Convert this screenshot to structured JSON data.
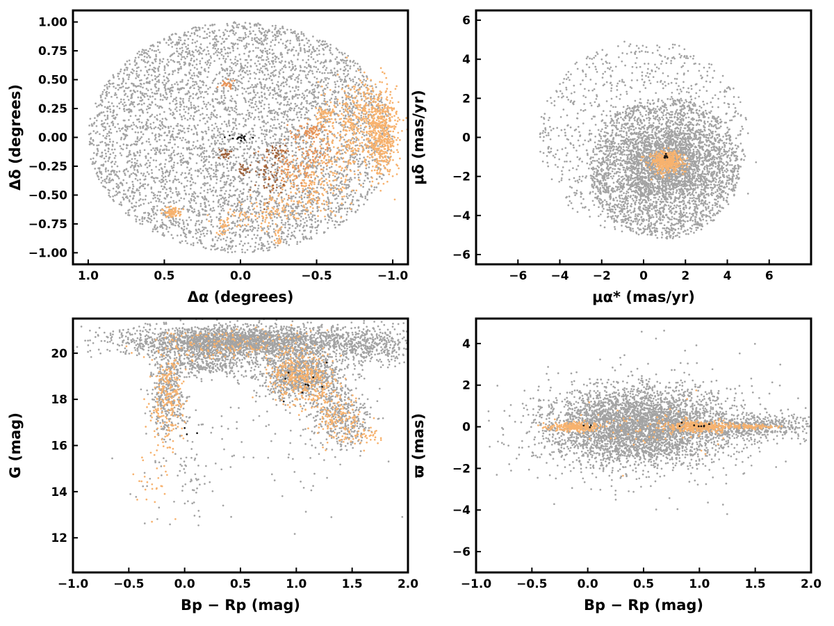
{
  "figure": {
    "colors": {
      "field": "#a3a3a3",
      "members": "#f7b26e",
      "members_secondary": "#e8955a",
      "members_dark": "#a0623a",
      "core": "#111111",
      "frame": "#000000"
    }
  },
  "chart_data": [
    {
      "id": "sky",
      "type": "scatter",
      "xlabel": "Δα (degrees)",
      "ylabel": "Δδ (degrees)",
      "xlim": [
        1.1,
        -1.1
      ],
      "ylim": [
        -1.1,
        1.1
      ],
      "xticks": [
        1.0,
        0.5,
        0.0,
        -0.5,
        -1.0
      ],
      "xtick_labels": [
        "1.0",
        "0.5",
        "0.0",
        "−0.5",
        "−1.0"
      ],
      "yticks": [
        1.0,
        0.75,
        0.5,
        0.25,
        0.0,
        -0.25,
        -0.5,
        -0.75,
        -1.0
      ],
      "ytick_labels": [
        "1.00",
        "0.75",
        "0.50",
        "0.25",
        "0.00",
        "−0.25",
        "−0.50",
        "−0.75",
        "−1.00"
      ],
      "grid": false,
      "layers": [
        {
          "role": "field",
          "shape": "disk",
          "center": [
            0,
            0
          ],
          "radius": 1.0,
          "count": 5000
        },
        {
          "role": "members",
          "clumps": [
            {
              "center": [
                -0.93,
                0.05
              ],
              "sd": [
                0.05,
                0.2
              ],
              "count": 480
            },
            {
              "center": [
                -0.8,
                0.15
              ],
              "sd": [
                0.08,
                0.18
              ],
              "count": 260
            },
            {
              "center": [
                -0.62,
                -0.1
              ],
              "sd": [
                0.1,
                0.22
              ],
              "count": 180
            },
            {
              "center": [
                -0.55,
                0.2
              ],
              "sd": [
                0.03,
                0.03
              ],
              "count": 50
            },
            {
              "center": [
                0.45,
                -0.65
              ],
              "sd": [
                0.03,
                0.02
              ],
              "count": 70
            },
            {
              "center": [
                -0.45,
                -0.5
              ],
              "sd": [
                0.12,
                0.1
              ],
              "count": 120
            },
            {
              "center": [
                -0.05,
                -0.68
              ],
              "sd": [
                0.1,
                0.05
              ],
              "count": 50
            },
            {
              "center": [
                -0.2,
                -0.6
              ],
              "sd": [
                0.06,
                0.06
              ],
              "count": 40
            },
            {
              "center": [
                -0.4,
                -0.3
              ],
              "sd": [
                0.08,
                0.06
              ],
              "count": 40
            },
            {
              "center": [
                0.12,
                -0.8
              ],
              "sd": [
                0.02,
                0.04
              ],
              "count": 25
            },
            {
              "center": [
                -0.25,
                -0.85
              ],
              "sd": [
                0.02,
                0.04
              ],
              "count": 20
            }
          ]
        },
        {
          "role": "members_secondary",
          "clumps": [
            {
              "center": [
                -0.45,
                0.05
              ],
              "sd": [
                0.06,
                0.03
              ],
              "count": 60
            },
            {
              "center": [
                -0.35,
                -0.25
              ],
              "sd": [
                0.1,
                0.12
              ],
              "count": 90
            },
            {
              "center": [
                -0.5,
                -0.15
              ],
              "sd": [
                0.06,
                0.06
              ],
              "count": 40
            },
            {
              "center": [
                0.1,
                0.46
              ],
              "sd": [
                0.03,
                0.02
              ],
              "count": 25
            }
          ]
        },
        {
          "role": "members_dark",
          "clumps": [
            {
              "center": [
                0.1,
                -0.15
              ],
              "sd": [
                0.03,
                0.02
              ],
              "count": 25
            },
            {
              "center": [
                -0.02,
                -0.27
              ],
              "sd": [
                0.02,
                0.03
              ],
              "count": 20
            },
            {
              "center": [
                -0.25,
                -0.12
              ],
              "sd": [
                0.03,
                0.04
              ],
              "count": 25
            },
            {
              "center": [
                -0.18,
                -0.35
              ],
              "sd": [
                0.06,
                0.08
              ],
              "count": 50
            }
          ]
        },
        {
          "role": "core",
          "clumps": [
            {
              "center": [
                0.0,
                0.0
              ],
              "sd": [
                0.06,
                0.012
              ],
              "count": 16
            }
          ]
        }
      ]
    },
    {
      "id": "proper-motion",
      "type": "scatter",
      "xlabel": "μα* (mas/yr)",
      "ylabel": "μδ (mas/yr)",
      "xlim": [
        -8,
        8
      ],
      "ylim": [
        -6.5,
        6.5
      ],
      "xticks": [
        -6,
        -4,
        -2,
        0,
        2,
        4,
        6
      ],
      "xtick_labels": [
        "−6",
        "−4",
        "−2",
        "0",
        "2",
        "4",
        "6"
      ],
      "yticks": [
        6,
        4,
        2,
        0,
        -2,
        -4,
        -6
      ],
      "ytick_labels": [
        "6",
        "4",
        "2",
        "0",
        "−2",
        "−4",
        "−6"
      ],
      "grid": false,
      "layers": [
        {
          "role": "field",
          "shape": "disk",
          "center": [
            0,
            0
          ],
          "radius": 5.0,
          "count": 1100
        },
        {
          "role": "field",
          "shape": "disk",
          "center": [
            1.0,
            -1.6
          ],
          "radius": 3.6,
          "count": 2200
        },
        {
          "role": "field",
          "clumps": [
            {
              "center": [
                1.0,
                -1.3
              ],
              "sd": [
                1.2,
                0.9
              ],
              "count": 1500
            }
          ]
        },
        {
          "role": "members",
          "clumps": [
            {
              "center": [
                1.1,
                -1.25
              ],
              "sd": [
                0.4,
                0.28
              ],
              "count": 380
            }
          ]
        },
        {
          "role": "core",
          "clumps": [
            {
              "center": [
                1.1,
                -1.0
              ],
              "sd": [
                0.1,
                0.1
              ],
              "count": 8
            }
          ]
        }
      ]
    },
    {
      "id": "cmd",
      "type": "scatter",
      "xlabel": "Bp − Rp (mag)",
      "ylabel": "G (mag)",
      "xlim": [
        -1.0,
        2.0
      ],
      "ylim": [
        10.5,
        21.5
      ],
      "xticks": [
        -1.0,
        -0.5,
        0.0,
        0.5,
        1.0,
        1.5,
        2.0
      ],
      "xtick_labels": [
        "−1.0",
        "−0.5",
        "0.0",
        "0.5",
        "1.0",
        "1.5",
        "2.0"
      ],
      "yticks": [
        20,
        18,
        16,
        14,
        12
      ],
      "ytick_labels": [
        "20",
        "18",
        "16",
        "14",
        "12"
      ],
      "grid": false,
      "layers": [
        {
          "role": "field",
          "clumps": [
            {
              "center": [
                0.5,
                20.5
              ],
              "sd": [
                0.55,
                0.35
              ],
              "count": 2600
            },
            {
              "center": [
                1.05,
                19.0
              ],
              "sd": [
                0.2,
                0.55
              ],
              "count": 900
            },
            {
              "center": [
                -0.15,
                18.2
              ],
              "sd": [
                0.08,
                0.9
              ],
              "count": 350
            },
            {
              "center": [
                1.4,
                17.2
              ],
              "sd": [
                0.15,
                0.6
              ],
              "count": 350
            },
            {
              "center": [
                0.2,
                19.6
              ],
              "sd": [
                0.2,
                0.3
              ],
              "count": 300
            },
            {
              "center": [
                1.7,
                20.3
              ],
              "sd": [
                0.2,
                0.4
              ],
              "count": 300
            },
            {
              "center": [
                0.0,
                15.0
              ],
              "sd": [
                0.2,
                1.2
              ],
              "count": 80
            },
            {
              "center": [
                0.7,
                15.5
              ],
              "sd": [
                0.5,
                1.5
              ],
              "count": 60
            }
          ]
        },
        {
          "role": "members",
          "clumps": [
            {
              "center": [
                -0.15,
                18.0
              ],
              "sd": [
                0.07,
                1.0
              ],
              "count": 230
            },
            {
              "center": [
                1.05,
                18.9
              ],
              "sd": [
                0.15,
                0.55
              ],
              "count": 360
            },
            {
              "center": [
                1.35,
                17.2
              ],
              "sd": [
                0.12,
                0.5
              ],
              "count": 150
            },
            {
              "center": [
                1.6,
                16.4
              ],
              "sd": [
                0.1,
                0.2
              ],
              "count": 40
            },
            {
              "center": [
                0.4,
                20.4
              ],
              "sd": [
                0.35,
                0.35
              ],
              "count": 160
            },
            {
              "center": [
                -0.3,
                14.5
              ],
              "sd": [
                0.08,
                0.8
              ],
              "count": 25
            }
          ]
        },
        {
          "role": "core",
          "clumps": [
            {
              "center": [
                1.1,
                18.6
              ],
              "sd": [
                0.12,
                0.5
              ],
              "count": 10
            },
            {
              "center": [
                0.0,
                16.6
              ],
              "sd": [
                0.05,
                0.2
              ],
              "count": 3
            }
          ]
        }
      ]
    },
    {
      "id": "parallax",
      "type": "scatter",
      "xlabel": "Bp − Rp (mag)",
      "ylabel": "ϖ (mas)",
      "xlim": [
        -1.0,
        2.0
      ],
      "ylim": [
        -7.0,
        5.2
      ],
      "xticks": [
        -1.0,
        -0.5,
        0.0,
        0.5,
        1.0,
        1.5,
        2.0
      ],
      "xtick_labels": [
        "−1.0",
        "−0.5",
        "0.0",
        "0.5",
        "1.0",
        "1.5",
        "2.0"
      ],
      "yticks": [
        4,
        2,
        0,
        -2,
        -4,
        -6
      ],
      "ytick_labels": [
        "4",
        "2",
        "0",
        "−2",
        "−4",
        "−6"
      ],
      "grid": false,
      "layers": [
        {
          "role": "field",
          "clumps": [
            {
              "center": [
                0.45,
                0.0
              ],
              "sd": [
                0.42,
                0.95
              ],
              "count": 3800
            },
            {
              "center": [
                1.5,
                0.0
              ],
              "sd": [
                0.3,
                0.3
              ],
              "count": 500
            },
            {
              "center": [
                0.5,
                0.0
              ],
              "sd": [
                0.6,
                2.0
              ],
              "count": 140
            }
          ]
        },
        {
          "role": "members",
          "clumps": [
            {
              "center": [
                -0.1,
                0.0
              ],
              "sd": [
                0.12,
                0.12
              ],
              "count": 230
            },
            {
              "center": [
                1.0,
                0.0
              ],
              "sd": [
                0.15,
                0.15
              ],
              "count": 320
            },
            {
              "center": [
                1.45,
                0.0
              ],
              "sd": [
                0.15,
                0.05
              ],
              "count": 90
            },
            {
              "center": [
                0.5,
                0.0
              ],
              "sd": [
                0.3,
                0.7
              ],
              "count": 60
            }
          ]
        },
        {
          "role": "core",
          "clumps": [
            {
              "center": [
                1.0,
                0.05
              ],
              "sd": [
                0.1,
                0.1
              ],
              "count": 8
            },
            {
              "center": [
                0.0,
                0.0
              ],
              "sd": [
                0.05,
                0.05
              ],
              "count": 3
            }
          ]
        }
      ]
    }
  ]
}
